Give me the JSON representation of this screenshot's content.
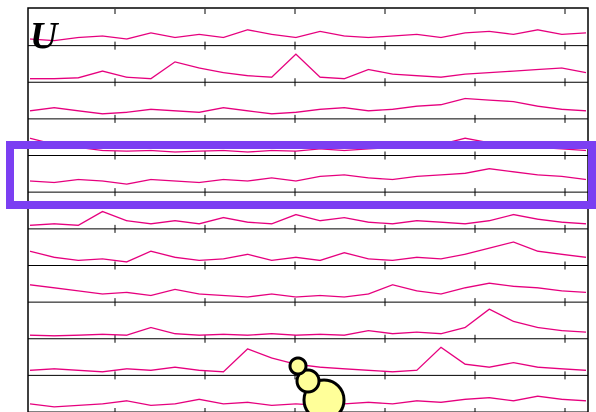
{
  "chart_data": {
    "type": "line",
    "label": "U",
    "grid": true,
    "series": [
      {
        "color": "#e6007e",
        "values": [
          0.15,
          0.1,
          0.2,
          0.25,
          0.15,
          0.35,
          0.2,
          0.3,
          0.2,
          0.45,
          0.3,
          0.2,
          0.4,
          0.25,
          0.2,
          0.25,
          0.3,
          0.2,
          0.35,
          0.4,
          0.3,
          0.45,
          0.3,
          0.35
        ]
      },
      {
        "color": "#e6007e",
        "values": [
          0.05,
          0.05,
          0.08,
          0.3,
          0.1,
          0.05,
          0.6,
          0.4,
          0.25,
          0.15,
          0.1,
          0.85,
          0.1,
          0.05,
          0.35,
          0.2,
          0.15,
          0.1,
          0.2,
          0.25,
          0.3,
          0.35,
          0.4,
          0.25
        ]
      },
      {
        "color": "#e6007e",
        "values": [
          0.2,
          0.3,
          0.2,
          0.1,
          0.15,
          0.25,
          0.2,
          0.15,
          0.3,
          0.2,
          0.1,
          0.15,
          0.25,
          0.3,
          0.2,
          0.25,
          0.35,
          0.4,
          0.6,
          0.55,
          0.5,
          0.35,
          0.25,
          0.2
        ]
      },
      {
        "color": "#e6007e",
        "values": [
          0.5,
          0.3,
          0.2,
          0.1,
          0.08,
          0.1,
          0.05,
          0.08,
          0.1,
          0.05,
          0.1,
          0.08,
          0.15,
          0.1,
          0.15,
          0.2,
          0.25,
          0.3,
          0.5,
          0.35,
          0.3,
          0.2,
          0.15,
          0.1
        ]
      },
      {
        "color": "#e6007e",
        "values": [
          0.3,
          0.25,
          0.35,
          0.3,
          0.2,
          0.35,
          0.3,
          0.25,
          0.35,
          0.3,
          0.4,
          0.3,
          0.45,
          0.5,
          0.4,
          0.35,
          0.45,
          0.5,
          0.55,
          0.7,
          0.6,
          0.5,
          0.45,
          0.35
        ]
      },
      {
        "color": "#e6007e",
        "values": [
          0.05,
          0.1,
          0.05,
          0.5,
          0.2,
          0.1,
          0.2,
          0.1,
          0.3,
          0.15,
          0.1,
          0.4,
          0.2,
          0.3,
          0.15,
          0.1,
          0.2,
          0.15,
          0.1,
          0.2,
          0.4,
          0.25,
          0.15,
          0.1
        ]
      },
      {
        "color": "#e6007e",
        "values": [
          0.4,
          0.2,
          0.1,
          0.15,
          0.05,
          0.4,
          0.2,
          0.1,
          0.15,
          0.3,
          0.1,
          0.2,
          0.1,
          0.35,
          0.15,
          0.1,
          0.2,
          0.15,
          0.3,
          0.5,
          0.7,
          0.4,
          0.3,
          0.2
        ]
      },
      {
        "color": "#e6007e",
        "values": [
          0.5,
          0.4,
          0.3,
          0.2,
          0.25,
          0.15,
          0.35,
          0.2,
          0.15,
          0.1,
          0.2,
          0.1,
          0.15,
          0.1,
          0.2,
          0.5,
          0.3,
          0.2,
          0.4,
          0.55,
          0.45,
          0.4,
          0.3,
          0.25
        ]
      },
      {
        "color": "#e6007e",
        "values": [
          0.05,
          0.03,
          0.05,
          0.08,
          0.05,
          0.3,
          0.1,
          0.05,
          0.08,
          0.05,
          0.1,
          0.05,
          0.08,
          0.05,
          0.2,
          0.1,
          0.15,
          0.1,
          0.3,
          0.9,
          0.5,
          0.3,
          0.2,
          0.15
        ]
      },
      {
        "color": "#e6007e",
        "values": [
          0.1,
          0.15,
          0.1,
          0.05,
          0.15,
          0.1,
          0.2,
          0.1,
          0.05,
          0.8,
          0.5,
          0.3,
          0.2,
          0.15,
          0.1,
          0.05,
          0.1,
          0.85,
          0.3,
          0.2,
          0.35,
          0.2,
          0.15,
          0.1
        ]
      },
      {
        "color": "#e6007e",
        "values": [
          0.2,
          0.1,
          0.15,
          0.2,
          0.3,
          0.15,
          0.2,
          0.35,
          0.2,
          0.25,
          0.15,
          0.2,
          0.15,
          0.2,
          0.25,
          0.2,
          0.3,
          0.25,
          0.35,
          0.4,
          0.3,
          0.45,
          0.35,
          0.3
        ]
      }
    ]
  }
}
